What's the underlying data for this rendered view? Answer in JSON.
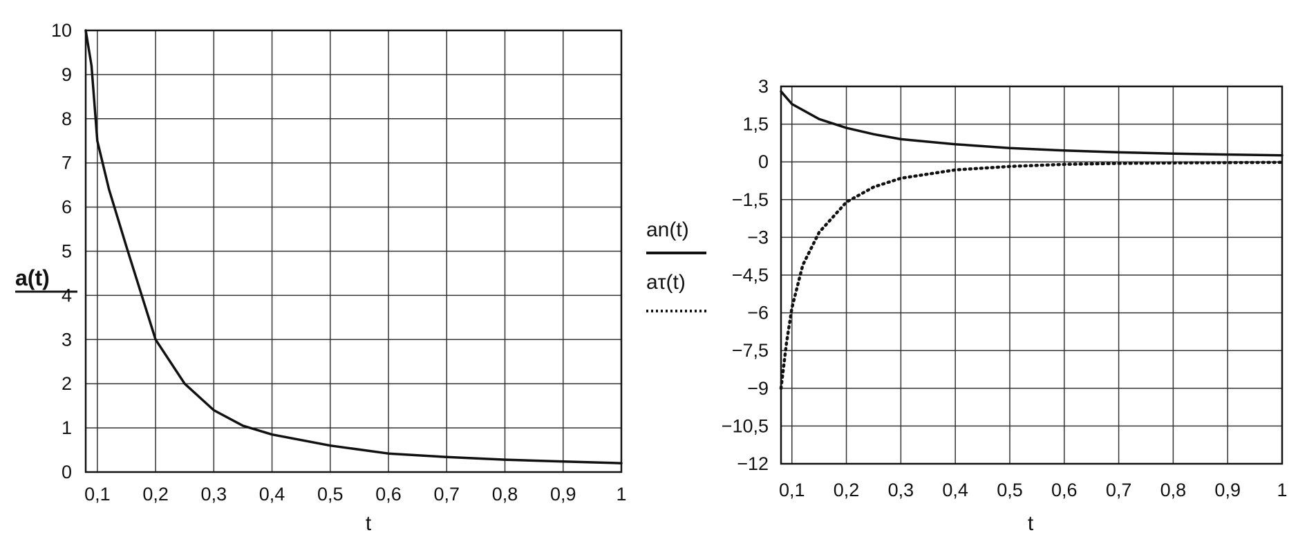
{
  "chart_data": [
    {
      "type": "line",
      "title": "",
      "xlabel": "t",
      "ylabel": "a(t)",
      "xlim": [
        0.08,
        1
      ],
      "ylim": [
        0,
        10
      ],
      "grid": true,
      "x_ticks": [
        "0,1",
        "0,2",
        "0,3",
        "0,4",
        "0,5",
        "0,6",
        "0,7",
        "0,8",
        "0,9",
        "1"
      ],
      "y_ticks": [
        "0",
        "1",
        "2",
        "3",
        "4",
        "5",
        "6",
        "7",
        "8",
        "9",
        "10"
      ],
      "series": [
        {
          "name": "a(t)",
          "style": "solid",
          "color": "#111111",
          "x": [
            0.08,
            0.09,
            0.1,
            0.12,
            0.15,
            0.2,
            0.25,
            0.3,
            0.35,
            0.4,
            0.5,
            0.6,
            0.7,
            0.8,
            0.9,
            1.0
          ],
          "y": [
            10.0,
            9.2,
            7.5,
            6.4,
            5.1,
            3.0,
            2.0,
            1.4,
            1.05,
            0.85,
            0.6,
            0.42,
            0.34,
            0.28,
            0.24,
            0.2
          ]
        }
      ]
    },
    {
      "type": "line",
      "title": "",
      "xlabel": "t",
      "ylabel": "",
      "xlim": [
        0.08,
        1
      ],
      "ylim": [
        -12,
        3
      ],
      "grid": true,
      "x_ticks": [
        "0,1",
        "0,2",
        "0,3",
        "0,4",
        "0,5",
        "0,6",
        "0,7",
        "0,8",
        "0,9",
        "1"
      ],
      "y_ticks": [
        "3",
        "1,5",
        "0",
        "−1,5",
        "−3",
        "−4,5",
        "−6",
        "−7,5",
        "−9",
        "−10,5",
        "−12"
      ],
      "legend_placement": "left",
      "series": [
        {
          "name": "an(t)",
          "style": "solid",
          "color": "#111111",
          "x": [
            0.08,
            0.1,
            0.15,
            0.2,
            0.25,
            0.3,
            0.4,
            0.5,
            0.6,
            0.7,
            0.8,
            0.9,
            1.0
          ],
          "y": [
            2.8,
            2.3,
            1.7,
            1.35,
            1.1,
            0.9,
            0.7,
            0.55,
            0.45,
            0.38,
            0.33,
            0.29,
            0.26
          ]
        },
        {
          "name": "aτ(t)",
          "style": "dotted",
          "color": "#111111",
          "x": [
            0.08,
            0.09,
            0.1,
            0.12,
            0.15,
            0.2,
            0.25,
            0.3,
            0.4,
            0.5,
            0.6,
            0.7,
            0.8,
            0.9,
            1.0
          ],
          "y": [
            -9.0,
            -7.2,
            -5.8,
            -4.1,
            -2.8,
            -1.6,
            -1.0,
            -0.65,
            -0.32,
            -0.18,
            -0.1,
            -0.06,
            -0.04,
            -0.03,
            -0.02
          ]
        }
      ]
    }
  ]
}
